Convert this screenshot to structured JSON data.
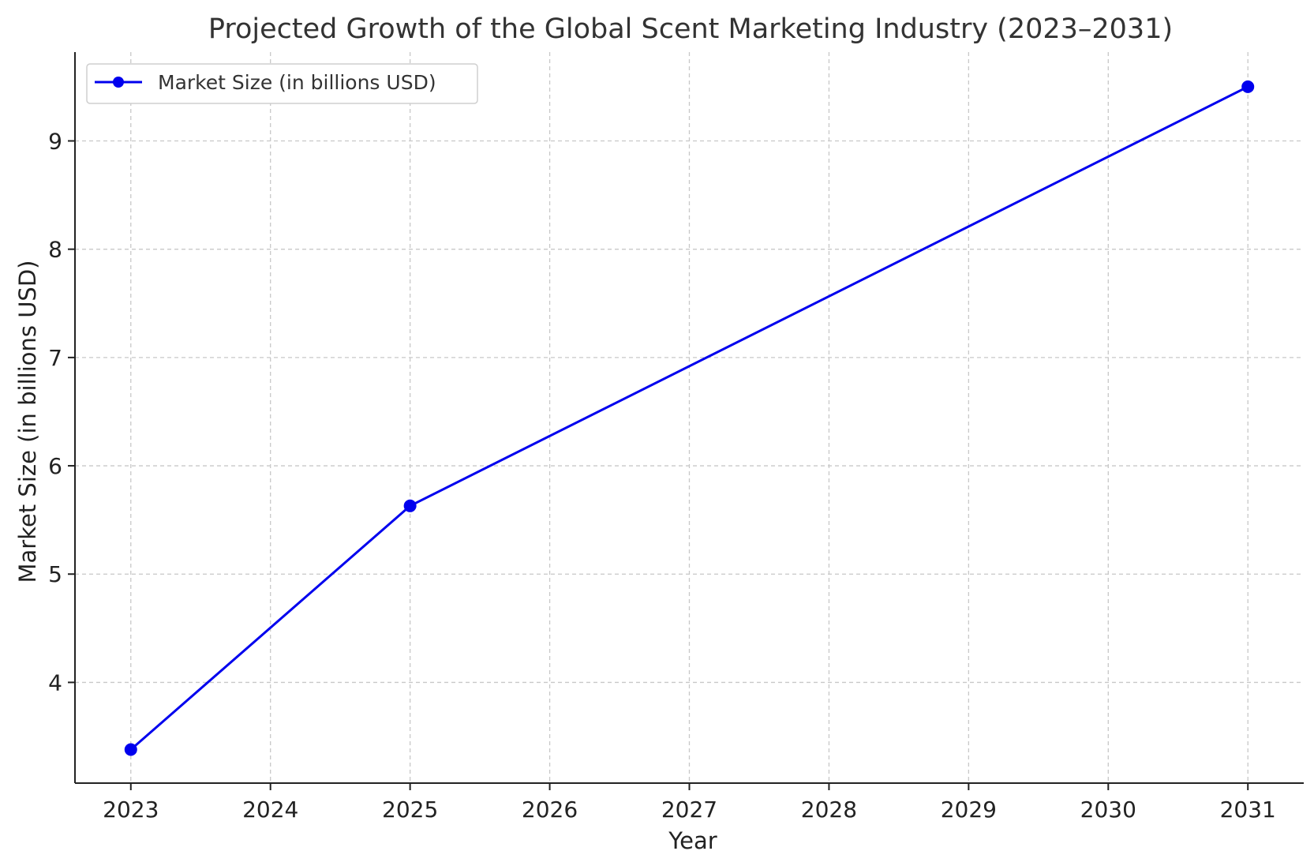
{
  "chart_data": {
    "type": "line",
    "title": "Projected Growth of the Global Scent Marketing Industry (2023–2031)",
    "xlabel": "Year",
    "ylabel": "Market Size (in billions USD)",
    "x_ticks": [
      "2023",
      "2024",
      "2025",
      "2026",
      "2027",
      "2028",
      "2029",
      "2030",
      "2031"
    ],
    "y_ticks": [
      "4",
      "5",
      "6",
      "7",
      "8",
      "9"
    ],
    "xlim": [
      2022.6,
      2031.4
    ],
    "ylim": [
      3.07,
      9.82
    ],
    "grid": true,
    "legend_position": "top-left",
    "series": [
      {
        "name": "Market Size (in billions USD)",
        "color": "#0000ee",
        "marker": "circle",
        "points": [
          {
            "x": 2023,
            "y": 3.38
          },
          {
            "x": 2025,
            "y": 5.63
          },
          {
            "x": 2031,
            "y": 9.5
          }
        ]
      }
    ]
  }
}
